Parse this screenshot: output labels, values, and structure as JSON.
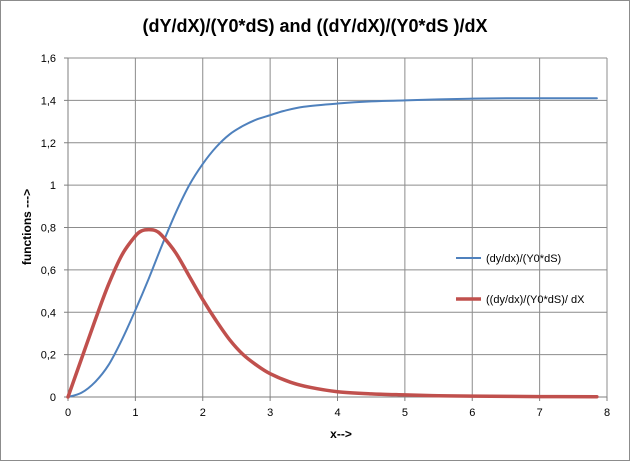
{
  "chart_data": {
    "type": "line",
    "title": "(dY/dX)/(Y0*dS)  and ((dY/dX)/(Y0*dS )/dX",
    "xlabel": "x-->",
    "ylabel": "functions --->",
    "xlim": [
      0,
      8
    ],
    "ylim": [
      0,
      1.6
    ],
    "x_ticks": [
      "0",
      "1",
      "2",
      "3",
      "4",
      "5",
      "6",
      "7",
      "8"
    ],
    "y_ticks": [
      "0",
      "0,2",
      "0,4",
      "0,6",
      "0,8",
      "1",
      "1,2",
      "1,4",
      "1,6"
    ],
    "grid": true,
    "legend_position": "right",
    "series": [
      {
        "name": "(dy/dx)/(Y0*dS)",
        "color": "#4f81bd",
        "x": [
          0,
          0.2,
          0.4,
          0.6,
          0.8,
          1.0,
          1.2,
          1.4,
          1.6,
          1.8,
          2.0,
          2.2,
          2.4,
          2.6,
          2.8,
          3.0,
          3.2,
          3.5,
          4.0,
          4.5,
          5.0,
          5.5,
          6.0,
          6.5,
          7.0,
          7.5,
          7.85
        ],
        "y": [
          0,
          0.02,
          0.07,
          0.15,
          0.27,
          0.41,
          0.56,
          0.72,
          0.87,
          1.0,
          1.1,
          1.18,
          1.24,
          1.28,
          1.31,
          1.33,
          1.35,
          1.37,
          1.385,
          1.395,
          1.4,
          1.405,
          1.408,
          1.41,
          1.41,
          1.41,
          1.41
        ]
      },
      {
        "name": "((dy/dx)/(Y0*dS)/ dX",
        "color": "#c0504d",
        "x": [
          0,
          0.2,
          0.4,
          0.6,
          0.8,
          1.0,
          1.1,
          1.2,
          1.3,
          1.4,
          1.6,
          1.8,
          2.0,
          2.2,
          2.4,
          2.6,
          2.8,
          3.0,
          3.3,
          3.6,
          4.0,
          4.5,
          5.0,
          5.5,
          6.0,
          7.0,
          7.85
        ],
        "y": [
          0,
          0.18,
          0.36,
          0.53,
          0.67,
          0.76,
          0.785,
          0.79,
          0.785,
          0.76,
          0.68,
          0.57,
          0.46,
          0.36,
          0.27,
          0.2,
          0.15,
          0.11,
          0.07,
          0.045,
          0.025,
          0.015,
          0.01,
          0.006,
          0.004,
          0.002,
          0.001
        ]
      }
    ]
  }
}
